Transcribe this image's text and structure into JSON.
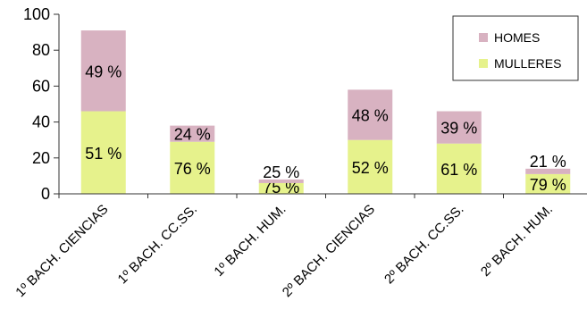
{
  "chart_data": {
    "type": "bar",
    "stacked": true,
    "categories": [
      "1º BACH. CIENCIAS",
      "1º BACH. CC.SS.",
      "1º BACH. HUM.",
      "2º BACH. CIENCIAS",
      "2º BACH. CC.SS.",
      "2º BACH. HUM."
    ],
    "series": [
      {
        "name": "MULLERES",
        "color": "#e6f28c",
        "values": [
          46,
          29,
          6,
          30,
          28,
          11
        ],
        "labels": [
          "51 %",
          "76 %",
          "75 %",
          "52 %",
          "61 %",
          "79 %"
        ]
      },
      {
        "name": "HOMES",
        "color": "#d8b2c1",
        "values": [
          45,
          9,
          2,
          28,
          18,
          3
        ],
        "labels": [
          "49 %",
          "24 %",
          "25 %",
          "48 %",
          "39 %",
          "21 %"
        ]
      }
    ],
    "legend_order": [
      "HOMES",
      "MULLERES"
    ],
    "ylim": [
      0,
      100
    ],
    "yticks": [
      0,
      20,
      40,
      60,
      80,
      100
    ],
    "grid": false,
    "legend_position": "top-right"
  }
}
